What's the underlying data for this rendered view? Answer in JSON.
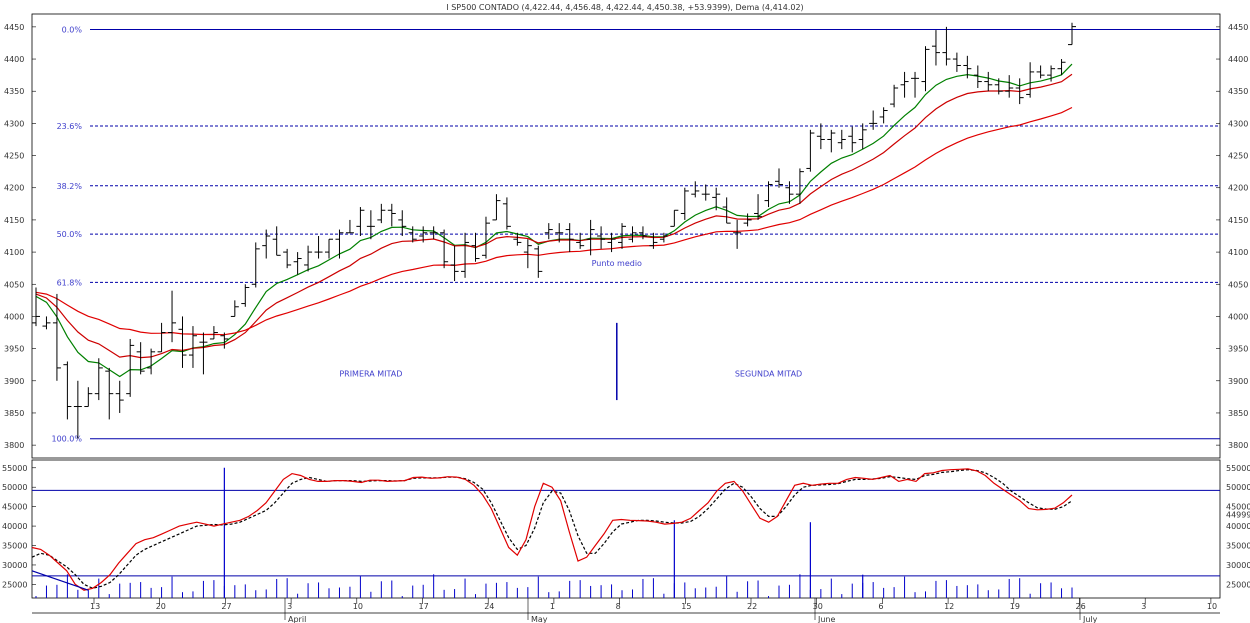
{
  "title": "I SP500 CONTADO (4,422.44, 4,456.48, 4,422.44, 4,450.38, +53.9399), Dema (4,414.02)",
  "colors": {
    "bar": "#000000",
    "ema_fast": "#008000",
    "ema_slow": "#cc0000",
    "ema_long": "#e00000",
    "fib_line": "#0000aa",
    "fib_label": "#4040cc",
    "stoch_k": "#e00000",
    "stoch_d": "#000000",
    "volume": "#0000cc",
    "grid": "#999999"
  },
  "chart_data": [
    {
      "type": "ohlc",
      "title": "I SP500 CONTADO (4,422.44, 4,456.48, 4,422.44, 4,450.38, +53.9399), Dema (4,414.02)",
      "y_ticks": [
        "3800",
        "3850",
        "3900",
        "3950",
        "4000",
        "4050",
        "4100",
        "4150",
        "4200",
        "4250",
        "4300",
        "4350",
        "4400",
        "4450"
      ],
      "ylim": [
        3780,
        4470
      ],
      "x_tick_labels": [
        "13",
        "20",
        "27",
        "3",
        "10",
        "17",
        "24",
        "1",
        "8",
        "15",
        "22",
        "30",
        "6",
        "12",
        "19",
        "26",
        "3",
        "10",
        "17"
      ],
      "month_labels": [
        "April",
        "May",
        "June",
        "July"
      ],
      "fib_levels": [
        {
          "label": "0.0%",
          "value": 4446
        },
        {
          "label": "23.6%",
          "value": 4296
        },
        {
          "label": "38.2%",
          "value": 4203
        },
        {
          "label": "50.0%",
          "value": 4128
        },
        {
          "label": "61.8%",
          "value": 4053
        },
        {
          "label": "100.0%",
          "value": 3810
        }
      ],
      "annotations": [
        {
          "text": "PRIMERA MITAD",
          "x": 32,
          "y": 3911
        },
        {
          "text": "Punto medio",
          "x": 55.5,
          "y": 4083
        },
        {
          "text": "SEGUNDA MITAD",
          "x": 70,
          "y": 3911
        }
      ],
      "midpoint_marker": {
        "x": 55.5,
        "y_top": 3990,
        "y_bottom": 3870
      },
      "bars": [
        [
          3990,
          4045,
          3985,
          4000
        ],
        [
          3985,
          4000,
          3980,
          3990
        ],
        [
          3990,
          4035,
          3900,
          3920
        ],
        [
          3925,
          3930,
          3840,
          3860
        ],
        [
          3860,
          3900,
          3810,
          3860
        ],
        [
          3860,
          3890,
          3860,
          3880
        ],
        [
          3880,
          3935,
          3870,
          3920
        ],
        [
          3915,
          3920,
          3840,
          3880
        ],
        [
          3880,
          3900,
          3850,
          3870
        ],
        [
          3880,
          3965,
          3875,
          3955
        ],
        [
          3945,
          3960,
          3910,
          3915
        ],
        [
          3920,
          3950,
          3910,
          3945
        ],
        [
          3945,
          3990,
          3945,
          3975
        ],
        [
          3975,
          4040,
          3960,
          3990
        ],
        [
          3980,
          4000,
          3920,
          3940
        ],
        [
          3940,
          3985,
          3920,
          3970
        ],
        [
          3960,
          3975,
          3910,
          3960
        ],
        [
          3965,
          3985,
          3965,
          3975
        ],
        [
          3970,
          3975,
          3950,
          3965
        ],
        [
          4000,
          4025,
          4000,
          4015
        ],
        [
          4020,
          4050,
          4015,
          4045
        ],
        [
          4050,
          4115,
          4045,
          4105
        ],
        [
          4110,
          4135,
          4090,
          4125
        ],
        [
          4120,
          4140,
          4095,
          4095
        ],
        [
          4100,
          4105,
          4075,
          4080
        ],
        [
          4085,
          4100,
          4065,
          4090
        ],
        [
          4080,
          4110,
          4070,
          4100
        ],
        [
          4100,
          4125,
          4090,
          4100
        ],
        [
          4100,
          4120,
          4090,
          4120
        ],
        [
          4120,
          4135,
          4090,
          4130
        ],
        [
          4130,
          4150,
          4130,
          4130
        ],
        [
          4140,
          4170,
          4125,
          4165
        ],
        [
          4140,
          4165,
          4120,
          4140
        ],
        [
          4150,
          4175,
          4145,
          4165
        ],
        [
          4165,
          4175,
          4140,
          4160
        ],
        [
          4150,
          4165,
          4125,
          4140
        ],
        [
          4130,
          4140,
          4115,
          4120
        ],
        [
          4125,
          4140,
          4115,
          4130
        ],
        [
          4130,
          4140,
          4120,
          4130
        ],
        [
          4130,
          4135,
          4075,
          4085
        ],
        [
          4080,
          4110,
          4055,
          4070
        ],
        [
          4070,
          4130,
          4060,
          4115
        ],
        [
          4110,
          4130,
          4085,
          4090
        ],
        [
          4095,
          4155,
          4090,
          4145
        ],
        [
          4150,
          4190,
          4150,
          4180
        ],
        [
          4175,
          4185,
          4135,
          4140
        ],
        [
          4120,
          4130,
          4110,
          4115
        ],
        [
          4100,
          4120,
          4075,
          4110
        ],
        [
          4105,
          4110,
          4060,
          4070
        ],
        [
          4130,
          4145,
          4120,
          4135
        ],
        [
          4130,
          4145,
          4115,
          4130
        ],
        [
          4135,
          4145,
          4100,
          4120
        ],
        [
          4115,
          4130,
          4105,
          4110
        ],
        [
          4120,
          4150,
          4095,
          4135
        ],
        [
          4125,
          4140,
          4105,
          4120
        ],
        [
          4115,
          4130,
          4100,
          4120
        ],
        [
          4115,
          4145,
          4105,
          4140
        ],
        [
          4120,
          4140,
          4115,
          4130
        ],
        [
          4130,
          4140,
          4120,
          4125
        ],
        [
          4110,
          4130,
          4105,
          4115
        ],
        [
          4120,
          4130,
          4115,
          4125
        ],
        [
          4140,
          4165,
          4140,
          4165
        ],
        [
          4160,
          4200,
          4150,
          4195
        ],
        [
          4190,
          4210,
          4185,
          4195
        ],
        [
          4190,
          4205,
          4180,
          4190
        ],
        [
          4185,
          4200,
          4165,
          4190
        ],
        [
          4170,
          4185,
          4145,
          4145
        ],
        [
          4130,
          4150,
          4105,
          4130
        ],
        [
          4145,
          4160,
          4140,
          4150
        ],
        [
          4160,
          4190,
          4150,
          4155
        ],
        [
          4180,
          4210,
          4170,
          4205
        ],
        [
          4210,
          4230,
          4200,
          4205
        ],
        [
          4200,
          4210,
          4175,
          4190
        ],
        [
          4190,
          4230,
          4175,
          4225
        ],
        [
          4230,
          4290,
          4225,
          4285
        ],
        [
          4280,
          4300,
          4260,
          4275
        ],
        [
          4275,
          4290,
          4255,
          4285
        ],
        [
          4270,
          4290,
          4260,
          4275
        ],
        [
          4280,
          4295,
          4255,
          4270
        ],
        [
          4275,
          4300,
          4260,
          4290
        ],
        [
          4300,
          4320,
          4290,
          4300
        ],
        [
          4310,
          4325,
          4300,
          4320
        ],
        [
          4330,
          4360,
          4325,
          4355
        ],
        [
          4360,
          4380,
          4340,
          4365
        ],
        [
          4370,
          4380,
          4340,
          4370
        ],
        [
          4365,
          4420,
          4350,
          4415
        ],
        [
          4420,
          4445,
          4390,
          4410
        ],
        [
          4410,
          4450,
          4390,
          4400
        ],
        [
          4400,
          4410,
          4380,
          4390
        ],
        [
          4390,
          4405,
          4370,
          4385
        ],
        [
          4375,
          4390,
          4355,
          4365
        ],
        [
          4365,
          4380,
          4350,
          4360
        ],
        [
          4360,
          4370,
          4345,
          4350
        ],
        [
          4350,
          4375,
          4340,
          4355
        ],
        [
          4355,
          4370,
          4330,
          4340
        ],
        [
          4345,
          4395,
          4340,
          4380
        ],
        [
          4380,
          4390,
          4370,
          4375
        ],
        [
          4375,
          4390,
          4365,
          4385
        ],
        [
          4385,
          4400,
          4375,
          4395
        ],
        [
          4422.44,
          4456.48,
          4422.44,
          4450.38
        ]
      ]
    },
    {
      "type": "line",
      "title": "",
      "y_ticks": [
        "25000",
        "30000",
        "35000",
        "40000",
        "45000",
        "50000",
        "55000"
      ],
      "y_tick_labels_right": [
        "25000",
        "30000",
        "35000",
        "40000",
        "44999",
        "45000",
        "50000",
        "55000"
      ],
      "ylim": [
        21500,
        57000
      ],
      "hline": 49200,
      "lower_hline": 27200,
      "k": [
        34500,
        34000,
        32500,
        30500,
        28500,
        25000,
        23500,
        24000,
        25500,
        27500,
        30500,
        33000,
        35500,
        36500,
        37000,
        38000,
        39000,
        40000,
        40500,
        41000,
        40500,
        40000,
        40500,
        41000,
        41500,
        42500,
        44000,
        46000,
        49000,
        52000,
        53500,
        53000,
        52000,
        51500,
        51500,
        51700,
        51700,
        51500,
        51200,
        51800,
        51800,
        51500,
        51600,
        51700,
        52500,
        52600,
        52300,
        52400,
        52700,
        52600,
        52000,
        50500,
        48000,
        44500,
        39500,
        34500,
        32500,
        36500,
        45000,
        51000,
        50000,
        46500,
        38500,
        31000,
        32000,
        35000,
        38000,
        41500,
        41700,
        41500,
        41400,
        41300,
        41000,
        40500,
        40700,
        41000,
        42000,
        44000,
        46000,
        49000,
        51000,
        51500,
        49000,
        45500,
        42000,
        41000,
        42500,
        46500,
        50500,
        51000,
        50500,
        50800,
        51000,
        51000,
        52000,
        52500,
        52300,
        52000,
        52500,
        53000,
        51500,
        52000,
        51500,
        53500,
        53700,
        54300,
        54500,
        54600,
        54700,
        54200,
        53000,
        51000,
        49500,
        48000,
        46500,
        44500,
        44200,
        44300,
        44600,
        46000,
        48000
      ],
      "d": [
        32000,
        33000,
        32500,
        31000,
        29500,
        27500,
        25000,
        24000,
        24500,
        25500,
        27500,
        30000,
        32500,
        34000,
        35000,
        36000,
        37000,
        38000,
        39000,
        40000,
        40200,
        40400,
        40300,
        40500,
        41000,
        42000,
        43000,
        44000,
        46000,
        48500,
        51000,
        52000,
        52500,
        52000,
        51500,
        51700,
        51700,
        51700,
        51500,
        51600,
        51700,
        51700,
        51600,
        51700,
        52300,
        52400,
        52400,
        52400,
        52600,
        52600,
        52200,
        51200,
        49500,
        46000,
        41500,
        37000,
        34000,
        35000,
        39500,
        46000,
        49000,
        48500,
        44000,
        37500,
        33000,
        33000,
        35500,
        38500,
        40500,
        41000,
        41500,
        41500,
        41300,
        41000,
        40800,
        40800,
        41200,
        42500,
        44500,
        47000,
        49500,
        51000,
        50000,
        47500,
        44500,
        42500,
        42500,
        45000,
        48000,
        50000,
        50500,
        50600,
        50700,
        50900,
        51500,
        52000,
        52000,
        52100,
        52300,
        52700,
        52500,
        52200,
        52000,
        53000,
        53300,
        53800,
        54000,
        54300,
        54500,
        54300,
        53700,
        52500,
        51000,
        49000,
        47500,
        46000,
        44700,
        44400,
        44300,
        45000,
        46500
      ],
      "volume_spikes": [
        {
          "x": 18,
          "value": 55000
        },
        {
          "x": 61,
          "value": 41500
        },
        {
          "x": 74,
          "value": 41000
        },
        {
          "x": 79,
          "value": 27500
        }
      ]
    }
  ]
}
